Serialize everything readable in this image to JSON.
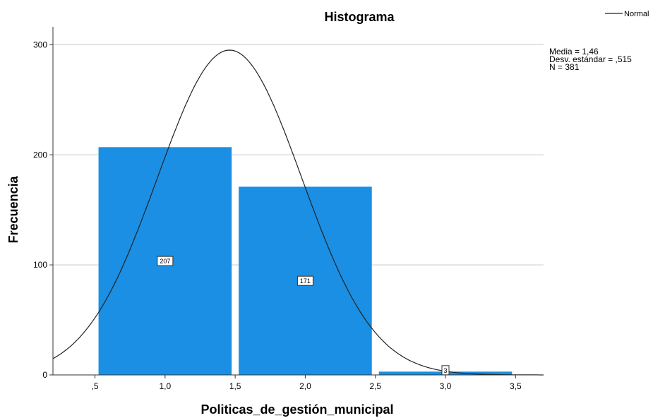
{
  "chart_data": {
    "type": "bar",
    "title": "Histograma",
    "xlabel": "Politicas_de_gestión_municipal",
    "ylabel": "Frecuencia",
    "xlim": [
      0.2,
      3.7
    ],
    "ylim": [
      0,
      315
    ],
    "x_ticks": [
      0.5,
      1.0,
      1.5,
      2.0,
      2.5,
      3.0,
      3.5
    ],
    "x_tick_labels": [
      ",5",
      "1,0",
      "1,5",
      "2,0",
      "2,5",
      "3,0",
      "3,5"
    ],
    "y_ticks": [
      0,
      100,
      200,
      300
    ],
    "y_tick_labels": [
      "0",
      "100",
      "200",
      "300"
    ],
    "grid": "horizontal",
    "bars": [
      {
        "from": 0.5,
        "to": 1.5,
        "value": 207,
        "label": "207"
      },
      {
        "from": 1.5,
        "to": 2.5,
        "value": 171,
        "label": "171"
      },
      {
        "from": 2.5,
        "to": 3.5,
        "value": 3,
        "label": "3"
      }
    ],
    "bar_color": "#1a8fe3",
    "curve": {
      "name": "Normal",
      "mean": 1.46,
      "sd": 0.515,
      "n": 381,
      "bin_width": 1.0,
      "color": "#222222"
    },
    "stats_lines": [
      "Media = 1,46",
      "Desv. estándar = ,515",
      "N = 381"
    ],
    "legend": {
      "label": "Normal",
      "position": "top-right"
    }
  }
}
